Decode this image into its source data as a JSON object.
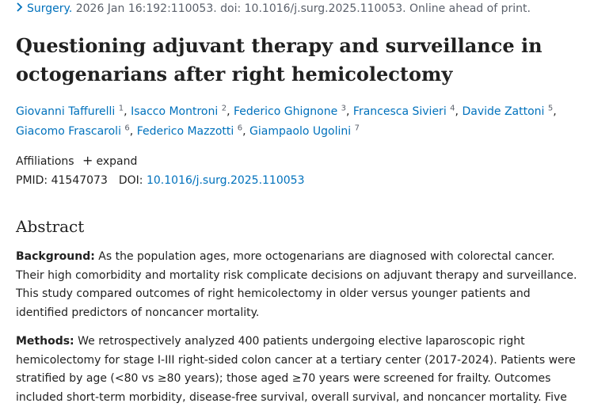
{
  "citation": {
    "journal": "Surgery.",
    "details": " 2026 Jan 16:192:110053. doi: 10.1016/j.surg.2025.110053. Online ahead of print."
  },
  "title": "Questioning adjuvant therapy and surveillance in octogenarians after right hemicolectomy",
  "authors": [
    {
      "name": "Giovanni Taffurelli",
      "sup": "1"
    },
    {
      "name": "Isacco Montroni",
      "sup": "2"
    },
    {
      "name": "Federico Ghignone",
      "sup": "3"
    },
    {
      "name": "Francesca Sivieri",
      "sup": "4"
    },
    {
      "name": "Davide Zattoni",
      "sup": "5"
    },
    {
      "name": "Giacomo Frascaroli",
      "sup": "6"
    },
    {
      "name": "Federico Mazzotti",
      "sup": "6"
    },
    {
      "name": "Giampaolo Ugolini",
      "sup": "7"
    }
  ],
  "affiliations": {
    "label": "Affiliations",
    "expand_label": "expand"
  },
  "ids": {
    "pmid_label": "PMID:",
    "pmid": "41547073",
    "doi_label": "DOI:",
    "doi": "10.1016/j.surg.2025.110053"
  },
  "abstract": {
    "heading": "Abstract",
    "background_label": "Background:",
    "background_text": " As the population ages, more octogenarians are diagnosed with colorectal cancer. Their high comorbidity and mortality risk complicate decisions on adjuvant therapy and surveillance. This study compared outcomes of right hemicolectomy in older versus younger patients and identified predictors of noncancer mortality.",
    "methods_label": "Methods:",
    "methods_text": " We retrospectively analyzed 400 patients undergoing elective laparoscopic right hemicolectomy for stage I-III right-sided colon cancer at a tertiary center (2017-2024). Patients were stratified by age (<80 vs ≥80 years); those aged ≥70 years were screened for frailty. Outcomes included short-term morbidity, disease-free survival, overall survival, and noncancer mortality. Five"
  }
}
